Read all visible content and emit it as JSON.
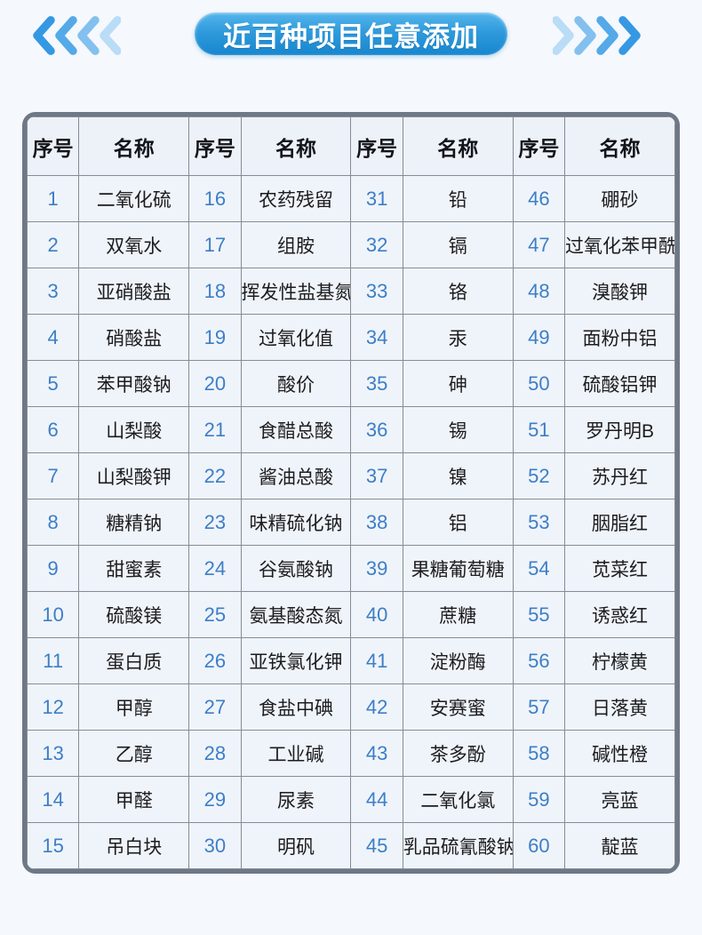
{
  "header": {
    "title": "近百种项目任意添加",
    "badge_gradient_top": "#55b5eb",
    "badge_gradient_bottom": "#1786cd",
    "left_chevron_colors": [
      "#3598e3",
      "#54a9e8",
      "#83c0ef",
      "#b9dcf7"
    ],
    "right_chevron_colors": [
      "#b9dcf7",
      "#83c0ef",
      "#54a9e8",
      "#3598e3"
    ]
  },
  "table": {
    "col_headers": [
      "序号",
      "名称",
      "序号",
      "名称",
      "序号",
      "名称",
      "序号",
      "名称"
    ],
    "number_color": "#3d7ec6",
    "frame_color": "#6e7887",
    "grid_color": "#868c97",
    "cell_background": "#eff4fa",
    "groups": [
      {
        "items": [
          {
            "no": "1",
            "name": "二氧化硫"
          },
          {
            "no": "2",
            "name": "双氧水"
          },
          {
            "no": "3",
            "name": "亚硝酸盐"
          },
          {
            "no": "4",
            "name": "硝酸盐"
          },
          {
            "no": "5",
            "name": "苯甲酸钠"
          },
          {
            "no": "6",
            "name": "山梨酸"
          },
          {
            "no": "7",
            "name": "山梨酸钾"
          },
          {
            "no": "8",
            "name": "糖精钠"
          },
          {
            "no": "9",
            "name": "甜蜜素"
          },
          {
            "no": "10",
            "name": "硫酸镁"
          },
          {
            "no": "11",
            "name": "蛋白质"
          },
          {
            "no": "12",
            "name": "甲醇"
          },
          {
            "no": "13",
            "name": "乙醇"
          },
          {
            "no": "14",
            "name": "甲醛"
          },
          {
            "no": "15",
            "name": "吊白块"
          }
        ]
      },
      {
        "items": [
          {
            "no": "16",
            "name": "农药残留"
          },
          {
            "no": "17",
            "name": "组胺"
          },
          {
            "no": "18",
            "name": "挥发性盐基氮"
          },
          {
            "no": "19",
            "name": "过氧化值"
          },
          {
            "no": "20",
            "name": "酸价"
          },
          {
            "no": "21",
            "name": "食醋总酸"
          },
          {
            "no": "22",
            "name": "酱油总酸"
          },
          {
            "no": "23",
            "name": "味精硫化钠"
          },
          {
            "no": "24",
            "name": "谷氨酸钠"
          },
          {
            "no": "25",
            "name": "氨基酸态氮"
          },
          {
            "no": "26",
            "name": "亚铁氯化钾"
          },
          {
            "no": "27",
            "name": "食盐中碘"
          },
          {
            "no": "28",
            "name": "工业碱"
          },
          {
            "no": "29",
            "name": "尿素"
          },
          {
            "no": "30",
            "name": "明矾"
          }
        ]
      },
      {
        "items": [
          {
            "no": "31",
            "name": "铅"
          },
          {
            "no": "32",
            "name": "镉"
          },
          {
            "no": "33",
            "name": "铬"
          },
          {
            "no": "34",
            "name": "汞"
          },
          {
            "no": "35",
            "name": "砷"
          },
          {
            "no": "36",
            "name": "锡"
          },
          {
            "no": "37",
            "name": "镍"
          },
          {
            "no": "38",
            "name": "铝"
          },
          {
            "no": "39",
            "name": "果糖葡萄糖"
          },
          {
            "no": "40",
            "name": "蔗糖"
          },
          {
            "no": "41",
            "name": "淀粉酶"
          },
          {
            "no": "42",
            "name": "安赛蜜"
          },
          {
            "no": "43",
            "name": "茶多酚"
          },
          {
            "no": "44",
            "name": "二氧化氯"
          },
          {
            "no": "45",
            "name": "乳品硫氰酸钠"
          }
        ]
      },
      {
        "items": [
          {
            "no": "46",
            "name": "硼砂"
          },
          {
            "no": "47",
            "name": "过氧化苯甲酰"
          },
          {
            "no": "48",
            "name": "溴酸钾"
          },
          {
            "no": "49",
            "name": "面粉中铝"
          },
          {
            "no": "50",
            "name": "硫酸铝钾"
          },
          {
            "no": "51",
            "name": "罗丹明B"
          },
          {
            "no": "52",
            "name": "苏丹红"
          },
          {
            "no": "53",
            "name": "胭脂红"
          },
          {
            "no": "54",
            "name": "苋菜红"
          },
          {
            "no": "55",
            "name": "诱惑红"
          },
          {
            "no": "56",
            "name": "柠檬黄"
          },
          {
            "no": "57",
            "name": "日落黄"
          },
          {
            "no": "58",
            "name": "碱性橙"
          },
          {
            "no": "59",
            "name": "亮蓝"
          },
          {
            "no": "60",
            "name": "靛蓝"
          }
        ]
      }
    ]
  }
}
